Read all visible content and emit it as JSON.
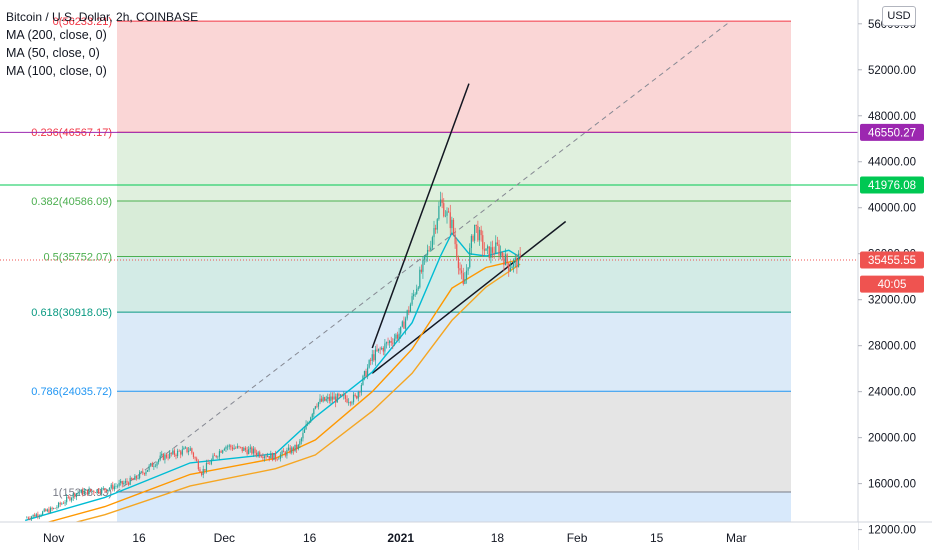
{
  "header": {
    "title": "Bitcoin / U.S. Dollar, 2h, COINBASE",
    "indicators": [
      "MA (200, close, 0)",
      "MA (50, close, 0)",
      "MA (100, close, 0)"
    ],
    "currency_button": "USD"
  },
  "colors": {
    "fib_0": "#f23645",
    "fib_0_236": "#f23645",
    "fib_0_382": "#4caf50",
    "fib_0_5": "#4caf50",
    "fib_0_618": "#089981",
    "fib_0_786": "#2196f3",
    "fib_1": "#787b86",
    "ma200": "#f5a623",
    "ma50": "#00bcd4",
    "ma100": "#ff9800",
    "price_up": "#26a69a",
    "price_down": "#ef5350",
    "price_tag": "#ef5350",
    "tag_46550": "#9c27b0",
    "tag_41976": "#00c853"
  },
  "chart_data": {
    "type": "line",
    "title": "Bitcoin / U.S. Dollar, 2h, COINBASE",
    "xlabel": "",
    "ylabel": "",
    "y_scale": "linear",
    "ylim": [
      10400,
      57200
    ],
    "x_ticks": [
      "Nov",
      "16",
      "Dec",
      "16",
      "2021",
      "18",
      "Feb",
      "15",
      "Mar"
    ],
    "y_ticks": [
      "12000.00",
      "16000.00",
      "20000.00",
      "24000.00",
      "28000.00",
      "32000.00",
      "36000.00",
      "40000.00",
      "44000.00",
      "48000.00",
      "52000.00",
      "56000.00"
    ],
    "fib_levels": [
      {
        "ratio": "0",
        "label": "0(56233.21)",
        "price": 56233.21
      },
      {
        "ratio": "0.236",
        "label": "0.236(46567.17)",
        "price": 46567.17
      },
      {
        "ratio": "0.382",
        "label": "0.382(40586.09)",
        "price": 40586.09
      },
      {
        "ratio": "0.5",
        "label": "0.5(35752.07)",
        "price": 35752.07
      },
      {
        "ratio": "0.618",
        "label": "0.618(30918.05)",
        "price": 30918.05
      },
      {
        "ratio": "0.786",
        "label": "0.786(24035.72)",
        "price": 24035.72
      },
      {
        "ratio": "1",
        "label": "1(15268.93)",
        "price": 15268.93
      }
    ],
    "price_series": {
      "x": [
        "2020-10-27",
        "2020-11-01",
        "2020-11-05",
        "2020-11-10",
        "2020-11-15",
        "2020-11-20",
        "2020-11-25",
        "2020-11-27",
        "2020-12-01",
        "2020-12-05",
        "2020-12-10",
        "2020-12-14",
        "2020-12-17",
        "2020-12-20",
        "2020-12-24",
        "2020-12-27",
        "2021-01-01",
        "2021-01-03",
        "2021-01-06",
        "2021-01-08",
        "2021-01-10",
        "2021-01-12",
        "2021-01-14",
        "2021-01-16",
        "2021-01-18",
        "2021-01-20",
        "2021-01-22"
      ],
      "close": [
        13000,
        13800,
        15200,
        15500,
        16300,
        18300,
        19000,
        17000,
        19300,
        18900,
        18300,
        19200,
        23000,
        23400,
        23400,
        27000,
        29200,
        32000,
        36500,
        40500,
        38500,
        33000,
        38500,
        36000,
        36500,
        35000,
        35455
      ]
    },
    "ma_series": [
      {
        "name": "MA (200, close, 0)",
        "x": [
          "2020-10-27",
          "2020-11-10",
          "2020-11-25",
          "2020-12-10",
          "2020-12-17",
          "2020-12-27",
          "2021-01-03",
          "2021-01-10",
          "2021-01-16",
          "2021-01-22"
        ],
        "values": [
          11500,
          13300,
          15800,
          17300,
          18500,
          22300,
          25600,
          30200,
          33100,
          35100
        ]
      },
      {
        "name": "MA (50, close, 0)",
        "x": [
          "2020-10-27",
          "2020-11-10",
          "2020-11-25",
          "2020-12-10",
          "2020-12-17",
          "2020-12-27",
          "2021-01-03",
          "2021-01-08",
          "2021-01-10",
          "2021-01-13",
          "2021-01-16",
          "2021-01-20",
          "2021-01-22"
        ],
        "values": [
          12800,
          14800,
          17800,
          18600,
          21800,
          25700,
          30000,
          35800,
          37800,
          36000,
          35800,
          36300,
          35700
        ]
      },
      {
        "name": "MA (100, close, 0)",
        "x": [
          "2020-10-27",
          "2020-11-10",
          "2020-11-25",
          "2020-12-10",
          "2020-12-17",
          "2020-12-27",
          "2021-01-03",
          "2021-01-10",
          "2021-01-16",
          "2021-01-22"
        ],
        "values": [
          12100,
          14000,
          16800,
          18200,
          19800,
          24000,
          27700,
          33000,
          34800,
          35500
        ]
      }
    ],
    "trend_lines": [
      {
        "x": [
          "2020-12-27",
          "2021-01-13"
        ],
        "y": [
          27800,
          50800
        ]
      },
      {
        "x": [
          "2020-12-27",
          "2021-01-30"
        ],
        "y": [
          25600,
          38800
        ]
      },
      {
        "x": [
          "2020-11-12",
          "2021-02-28"
        ],
        "y": [
          15268.93,
          56233.21
        ]
      }
    ],
    "price_tags": [
      {
        "label": "46550.27",
        "price": 46550.27,
        "color": "tag_46550"
      },
      {
        "label": "41976.08",
        "price": 41976.08,
        "color": "tag_41976"
      },
      {
        "label": "35455.55",
        "price": 35455.55,
        "color": "price_tag"
      },
      {
        "label": "40:05",
        "price": 33350,
        "color": "price_tag"
      }
    ],
    "grid": false,
    "legend_position": "top-left"
  }
}
